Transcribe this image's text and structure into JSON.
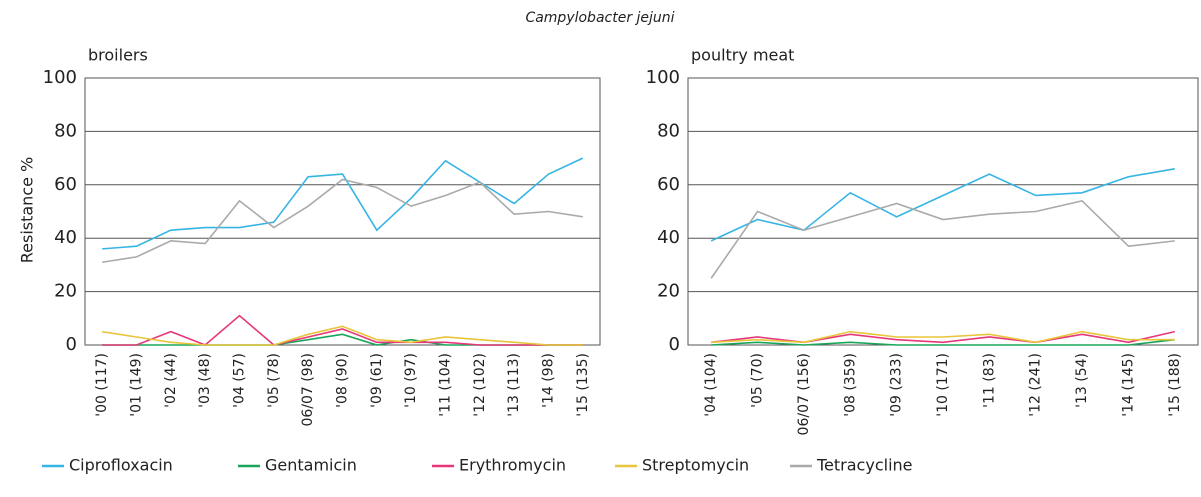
{
  "title": "Campylobacter jejuni",
  "chart_data": [
    {
      "type": "line",
      "subtitle": "broilers",
      "y_label": "Resistance %",
      "categories": [
        "'00 (117)",
        "'01 (149)",
        "'02 (44)",
        "'03 (48)",
        "'04 (57)",
        "'05 (78)",
        "06/07 (98)",
        "'08 (90)",
        "'09 (61)",
        "'10 (97)",
        "'11 (104)",
        "'12 (102)",
        "'13 (113)",
        "'14 (98)",
        "'15 (135)"
      ],
      "ylim": [
        0,
        100
      ],
      "yticks": [
        0,
        20,
        40,
        60,
        80,
        100
      ],
      "grid": true,
      "series": [
        {
          "name": "Ciprofloxacin",
          "color": "#36b5e5",
          "values": [
            36,
            37,
            43,
            44,
            44,
            46,
            63,
            64,
            43,
            55,
            69,
            61,
            53,
            64,
            70
          ]
        },
        {
          "name": "Gentamicin",
          "color": "#1aa55a",
          "values": [
            0,
            0,
            0,
            0,
            0,
            0,
            2,
            4,
            0,
            2,
            0,
            0,
            0,
            0,
            0
          ]
        },
        {
          "name": "Erythromycin",
          "color": "#e6377a",
          "values": [
            0,
            0,
            5,
            0,
            11,
            0,
            3,
            6,
            1,
            1,
            1,
            0,
            0,
            0,
            0
          ]
        },
        {
          "name": "Streptomycin",
          "color": "#e8c53a",
          "values": [
            5,
            3,
            1,
            0,
            0,
            0,
            4,
            7,
            2,
            1,
            3,
            2,
            1,
            0,
            0
          ]
        },
        {
          "name": "Tetracycline",
          "color": "#aaaaaa",
          "values": [
            31,
            33,
            39,
            38,
            54,
            44,
            52,
            62,
            59,
            52,
            56,
            61,
            49,
            50,
            48
          ]
        }
      ]
    },
    {
      "type": "line",
      "subtitle": "poultry meat",
      "categories": [
        "'04 (104)",
        "'05 (70)",
        "06/07 (156)",
        "'08 (359)",
        "'09 (233)",
        "'10 (171)",
        "'11 (83)",
        "'12 (241)",
        "'13 (54)",
        "'14 (145)",
        "'15 (188)"
      ],
      "ylim": [
        0,
        100
      ],
      "yticks": [
        0,
        20,
        40,
        60,
        80,
        100
      ],
      "grid": true,
      "series": [
        {
          "name": "Ciprofloxacin",
          "color": "#36b5e5",
          "values": [
            39,
            47,
            43,
            57,
            48,
            56,
            64,
            56,
            57,
            63,
            66
          ]
        },
        {
          "name": "Gentamicin",
          "color": "#1aa55a",
          "values": [
            0,
            1,
            0,
            1,
            0,
            0,
            0,
            0,
            0,
            0,
            2
          ]
        },
        {
          "name": "Erythromycin",
          "color": "#e6377a",
          "values": [
            1,
            3,
            1,
            4,
            2,
            1,
            3,
            1,
            4,
            1,
            5
          ]
        },
        {
          "name": "Streptomycin",
          "color": "#e8c53a",
          "values": [
            1,
            2,
            1,
            5,
            3,
            3,
            4,
            1,
            5,
            2,
            2
          ]
        },
        {
          "name": "Tetracycline",
          "color": "#aaaaaa",
          "values": [
            25,
            50,
            43,
            48,
            53,
            47,
            49,
            50,
            54,
            37,
            39
          ]
        }
      ]
    }
  ]
}
